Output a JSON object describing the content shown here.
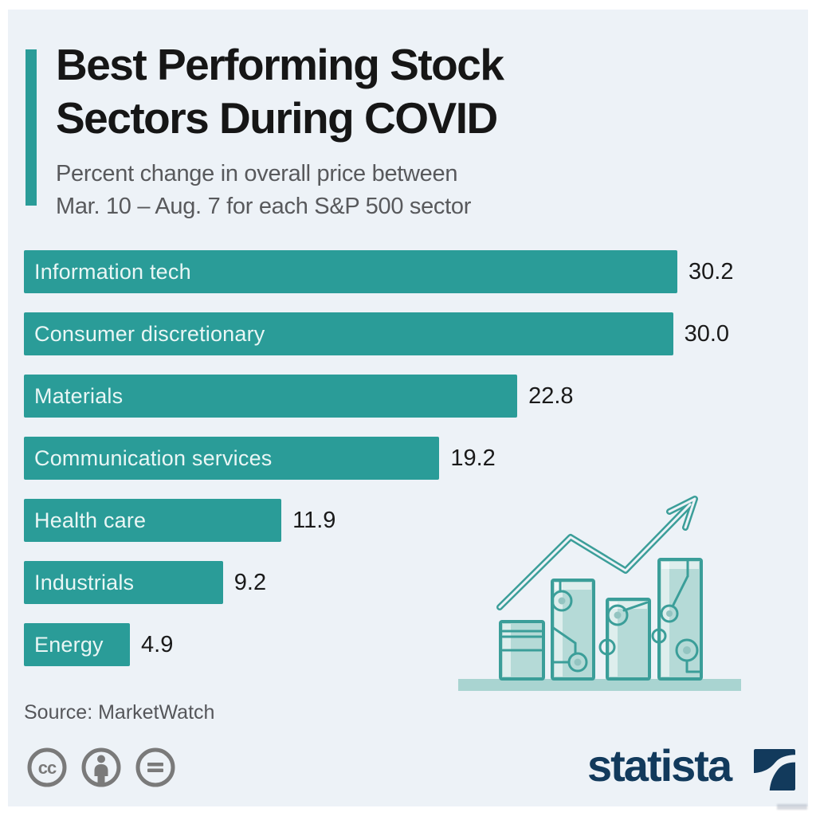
{
  "page": {
    "background": "#edf2f7",
    "margin_color": "#ffffff"
  },
  "header": {
    "title_line1": "Best Performing Stock",
    "title_line2": "Sectors During COVID",
    "subtitle_line1": "Percent change in overall price between",
    "subtitle_line2": "Mar. 10 – Aug. 7 for each S&P 500 sector"
  },
  "chart_data": {
    "type": "bar",
    "orientation": "horizontal",
    "title": "Best Performing Stock Sectors During COVID",
    "subtitle": "Percent change in overall price between Mar. 10 – Aug. 7 for each S&P 500 sector",
    "categories": [
      "Information tech",
      "Consumer discretionary",
      "Materials",
      "Communication services",
      "Health care",
      "Industrials",
      "Energy"
    ],
    "values": [
      30.2,
      30.0,
      22.8,
      19.2,
      11.9,
      9.2,
      4.9
    ],
    "value_labels": [
      "30.2",
      "30.0",
      "22.8",
      "19.2",
      "11.9",
      "9.2",
      "4.9"
    ],
    "xlim": [
      0,
      30.2
    ],
    "grid": false,
    "value_label_position": "right-of-bar",
    "bar_color": "#2a9c98",
    "label_color": "#e9f6f5",
    "value_color": "#1a1a1a"
  },
  "footer": {
    "source": "Source: MarketWatch",
    "license_icons": [
      "cc-icon",
      "attribution-icon",
      "no-derivatives-icon"
    ],
    "brand": "statista"
  },
  "colors": {
    "accent": "#2a9c98",
    "title": "#161616",
    "subtitle": "#58595c",
    "source": "#55565a",
    "license_gray": "#7a7a7a",
    "brand_navy": "#123a5c",
    "illustration_stroke": "#3b9e99",
    "illustration_fill": "#b5dad7",
    "illustration_ground": "#a9d4d1"
  }
}
